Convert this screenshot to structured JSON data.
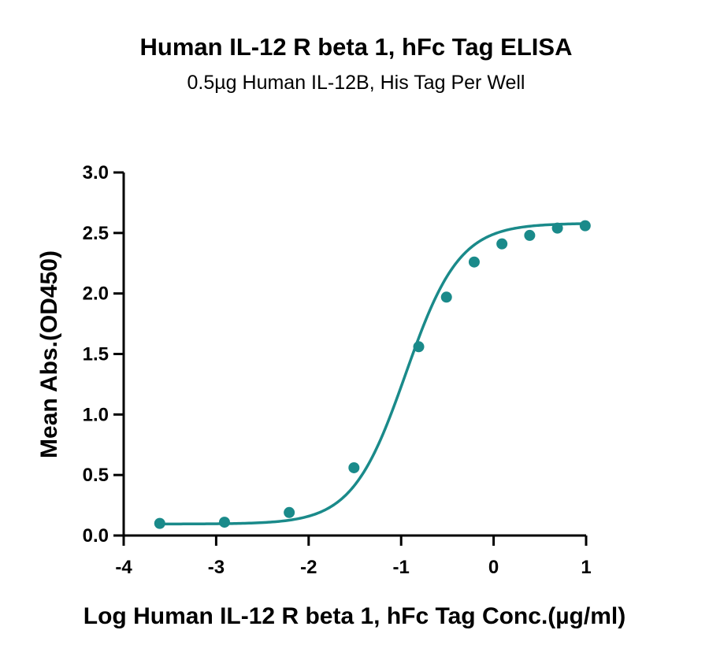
{
  "chart_data": {
    "type": "scatter",
    "title": "Human IL-12 R beta 1, hFc Tag ELISA",
    "subtitle": "0.5µg Human IL-12B, His Tag Per Well",
    "xlabel": "Log Human IL-12 R beta 1, hFc Tag Conc.(µg/ml)",
    "ylabel": "Mean Abs.(OD450)",
    "xlim": [
      -4,
      1
    ],
    "ylim": [
      0,
      3
    ],
    "xticks": [
      -4,
      -3,
      -2,
      -1,
      0,
      1
    ],
    "xtick_labels": [
      "-4",
      "-3",
      "-2",
      "-1",
      "0",
      "1"
    ],
    "yticks": [
      0,
      0.5,
      1,
      1.5,
      2,
      2.5,
      3
    ],
    "ytick_labels": [
      "0.0",
      "0.5",
      "1.0",
      "1.5",
      "2.0",
      "2.5",
      "3.0"
    ],
    "grid": false,
    "legend": "none",
    "color": "#1a8a8a",
    "series": [
      {
        "x": [
          -3.61,
          -2.91,
          -2.21,
          -1.51,
          -0.81,
          -0.51,
          -0.21,
          0.09,
          0.39,
          0.69,
          0.99
        ],
        "y": [
          0.1,
          0.11,
          0.19,
          0.56,
          1.56,
          1.97,
          2.26,
          2.41,
          2.48,
          2.54,
          2.56
        ]
      }
    ],
    "fit_curve": {
      "model": "4PL",
      "bottom": 0.095,
      "top": 2.58,
      "log_ec50": -0.95,
      "hill_slope": 1.5
    }
  }
}
